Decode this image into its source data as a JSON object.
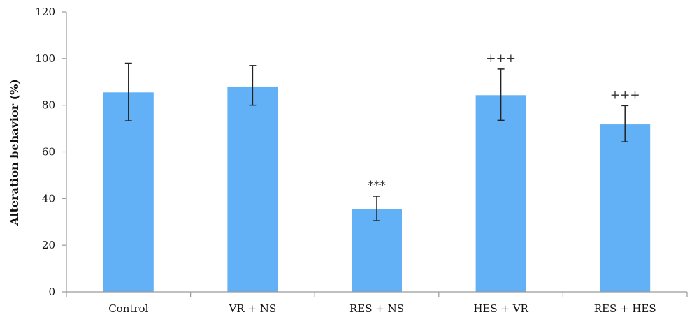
{
  "chart_data": {
    "type": "bar",
    "title": "",
    "xlabel": "",
    "ylabel": "Alteration behavior (%)",
    "ylim": [
      0,
      120
    ],
    "yticks": [
      "0",
      "20",
      "40",
      "60",
      "80",
      "100",
      "120"
    ],
    "categories": [
      "Control",
      "VR + NS",
      "RES + NS",
      "HES + VR",
      "RES + HES"
    ],
    "values": [
      85.5,
      88,
      35.5,
      84.3,
      71.8
    ],
    "error_high": [
      98,
      97,
      41,
      95.5,
      79.8
    ],
    "error_low": [
      73.3,
      80,
      30.5,
      73.5,
      64.3
    ],
    "annotations": [
      "",
      "",
      "***",
      "+++",
      "+++"
    ],
    "bar_color": "#62b1f6",
    "grid": false
  }
}
